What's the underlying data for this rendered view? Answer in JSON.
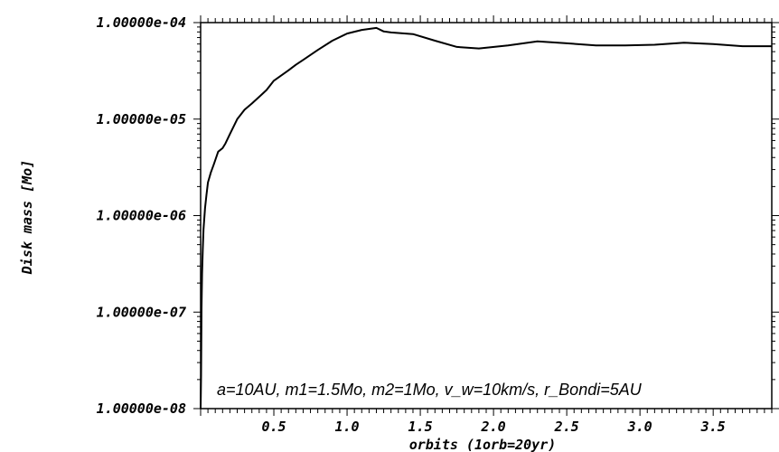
{
  "chart_data": {
    "type": "line",
    "xlabel": "orbits (1orb=20yr)",
    "ylabel": "Disk mass [Mo]",
    "annotation": "a=10AU,  m1=1.5Mo,  m2=1Mo,  v_w=10km/s,  r_Bondi=5AU",
    "xlim": [
      0.0,
      3.9
    ],
    "ylim": [
      1e-08,
      0.0001
    ],
    "y_scale": "log",
    "grid": false,
    "x_ticks": [
      0.5,
      1.0,
      1.5,
      2.0,
      2.5,
      3.0,
      3.5
    ],
    "x_tick_labels": [
      "0.5",
      "1.0",
      "1.5",
      "2.0",
      "2.5",
      "3.0",
      "3.5"
    ],
    "y_ticks": [
      1e-08,
      1e-07,
      1e-06,
      1e-05,
      0.0001
    ],
    "y_tick_labels": [
      "1.00000e-08",
      "1.00000e-07",
      "1.00000e-06",
      "1.00000e-05",
      "1.00000e-04"
    ],
    "series": [
      {
        "x": [
          0.0,
          0.003,
          0.006,
          0.01,
          0.015,
          0.02,
          0.03,
          0.04,
          0.05,
          0.07,
          0.09,
          0.12,
          0.15,
          0.17,
          0.2,
          0.25,
          0.3,
          0.35,
          0.4,
          0.45,
          0.5,
          0.6,
          0.65,
          0.7,
          0.8,
          0.9,
          1.0,
          1.1,
          1.2,
          1.25,
          1.3,
          1.45,
          1.6,
          1.75,
          1.9,
          2.1,
          2.3,
          2.5,
          2.7,
          2.9,
          3.1,
          3.3,
          3.5,
          3.7,
          3.9
        ],
        "y": [
          1e-08,
          2.2e-08,
          1.1e-07,
          2.5e-07,
          4.5e-07,
          7.2e-07,
          1.2e-06,
          1.65e-06,
          2.2e-06,
          2.8e-06,
          3.4e-06,
          4.6e-06,
          5e-06,
          5.6e-06,
          7e-06,
          1e-05,
          1.25e-05,
          1.45e-05,
          1.7e-05,
          2e-05,
          2.5e-05,
          3.2e-05,
          3.65e-05,
          4.1e-05,
          5.2e-05,
          6.5e-05,
          7.7e-05,
          8.4e-05,
          8.8e-05,
          8.1e-05,
          7.9e-05,
          7.6e-05,
          6.5e-05,
          5.6e-05,
          5.4e-05,
          5.8e-05,
          6.4e-05,
          6.1e-05,
          5.8e-05,
          5.8e-05,
          5.9e-05,
          6.2e-05,
          6e-05,
          5.7e-05,
          5.7e-05
        ]
      }
    ]
  }
}
